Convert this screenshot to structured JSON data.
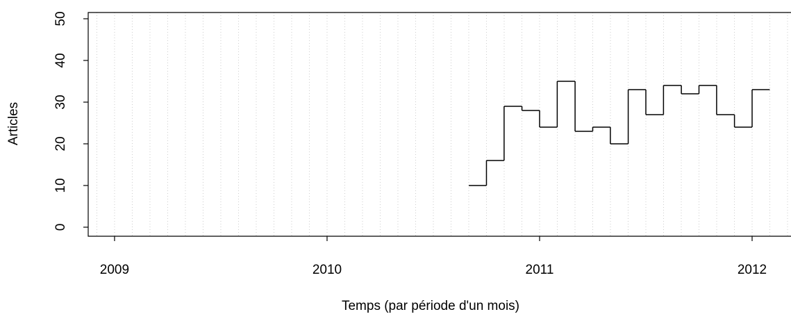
{
  "chart_data": {
    "type": "step",
    "xlabel": "Temps (par période d'un mois)",
    "ylabel": "Articles",
    "x": [
      2010.667,
      2010.75,
      2010.833,
      2010.917,
      2011,
      2011.083,
      2011.167,
      2011.25,
      2011.333,
      2011.417,
      2011.5,
      2011.583,
      2011.667,
      2011.75,
      2011.833,
      2011.917,
      2012
    ],
    "values": [
      10,
      16,
      29,
      28,
      24,
      35,
      23,
      24,
      20,
      33,
      27,
      34,
      32,
      34,
      27,
      24,
      33
    ],
    "color": "#000000",
    "xlim": [
      2008.876,
      2012.183
    ],
    "ylim": [
      -2.17,
      51.5
    ],
    "xticks": [
      2009,
      2010,
      2011,
      2012
    ],
    "yticks": [
      0,
      10,
      20,
      30,
      40,
      50
    ],
    "grid": true
  }
}
